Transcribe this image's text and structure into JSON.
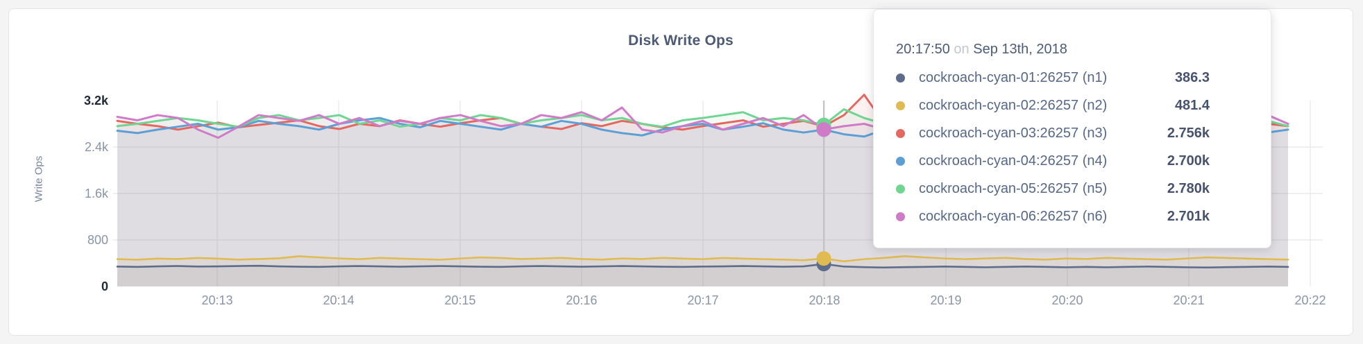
{
  "tooltip": {
    "time": "20:17:50",
    "conjunction": "on",
    "date": "Sep 13th, 2018",
    "rows": [
      {
        "label": "cockroach-cyan-01:26257 (n1)",
        "value": "386.3",
        "color": "#5a6882"
      },
      {
        "label": "cockroach-cyan-02:26257 (n2)",
        "value": "481.4",
        "color": "#e7bf4f"
      },
      {
        "label": "cockroach-cyan-03:26257 (n3)",
        "value": "2.756k",
        "color": "#e7685e"
      },
      {
        "label": "cockroach-cyan-04:26257 (n4)",
        "value": "2.700k",
        "color": "#5e9fd4"
      },
      {
        "label": "cockroach-cyan-05:26257 (n5)",
        "value": "2.780k",
        "color": "#cf7ec6"
      },
      {
        "label": "cockroach-cyan-06:26257 (n6)",
        "value": "2.701k",
        "color": "#cf7ec6"
      }
    ]
  },
  "chart_data": {
    "type": "line",
    "title": "Disk Write Ops",
    "ylabel": "Write Ops",
    "ylim": [
      0,
      3200
    ],
    "grid": true,
    "legend_position": "tooltip-overlay",
    "y_ticks": [
      {
        "value": 0,
        "label": "0",
        "emphasis": true
      },
      {
        "value": 800,
        "label": "800",
        "emphasis": false
      },
      {
        "value": 1600,
        "label": "1.6k",
        "emphasis": false
      },
      {
        "value": 2400,
        "label": "2.4k",
        "emphasis": false
      },
      {
        "value": 3200,
        "label": "3.2k",
        "emphasis": true
      }
    ],
    "x_ticks": [
      "20:13",
      "20:14",
      "20:15",
      "20:16",
      "20:17",
      "20:18",
      "20:19",
      "20:20",
      "20:21",
      "20:22"
    ],
    "hover": {
      "index": 35,
      "time": "20:17:50",
      "line_color": "#c2c3c6"
    },
    "series": [
      {
        "name": "cockroach-cyan-01:26257 (n1)",
        "color": "#5d6c8a",
        "hover_value": 386.3,
        "values": [
          342,
          336,
          346,
          352,
          342,
          346,
          352,
          356,
          346,
          340,
          336,
          346,
          352,
          346,
          340,
          346,
          352,
          346,
          340,
          336,
          346,
          352,
          346,
          340,
          346,
          352,
          346,
          340,
          336,
          342,
          346,
          352,
          346,
          340,
          346,
          386.3,
          342,
          332,
          326,
          332,
          336,
          342,
          336,
          330,
          336,
          342,
          336,
          330,
          336,
          330,
          336,
          342,
          336,
          330,
          326,
          332,
          336,
          342,
          336
        ]
      },
      {
        "name": "cockroach-cyan-02:26257 (n2)",
        "color": "#e0bb51",
        "hover_value": 481.4,
        "values": [
          470,
          460,
          480,
          472,
          490,
          478,
          462,
          472,
          484,
          520,
          500,
          482,
          470,
          492,
          480,
          470,
          460,
          482,
          500,
          490,
          472,
          482,
          492,
          472,
          462,
          482,
          472,
          492,
          480,
          470,
          490,
          480,
          470,
          462,
          452,
          481.4,
          432,
          470,
          492,
          522,
          500,
          482,
          470,
          482,
          492,
          472,
          462,
          482,
          472,
          492,
          480,
          470,
          462,
          482,
          500,
          490,
          480,
          470,
          462
        ]
      },
      {
        "name": "cockroach-cyan-03:26257 (n3)",
        "color": "#e4685f",
        "hover_value": 2756,
        "values": [
          2850,
          2800,
          2760,
          2700,
          2760,
          2820,
          2740,
          2780,
          2820,
          2860,
          2760,
          2710,
          2800,
          2760,
          2860,
          2800,
          2750,
          2810,
          2860,
          2900,
          2800,
          2750,
          2710,
          2810,
          2760,
          2850,
          2800,
          2740,
          2700,
          2760,
          2810,
          2860,
          2750,
          2800,
          2850,
          2756,
          2950,
          3300,
          2800,
          2750,
          2800,
          2900,
          2850,
          2950,
          2800,
          2750,
          2850,
          2800,
          2740,
          2800,
          2860,
          2750,
          2800,
          2900,
          2850,
          2790,
          2740,
          2800,
          2760
        ]
      },
      {
        "name": "cockroach-cyan-04:26257 (n4)",
        "color": "#5b9fd6",
        "hover_value": 2700,
        "values": [
          2680,
          2640,
          2700,
          2750,
          2800,
          2700,
          2740,
          2850,
          2800,
          2760,
          2700,
          2800,
          2860,
          2900,
          2800,
          2740,
          2850,
          2800,
          2750,
          2700,
          2800,
          2750,
          2850,
          2800,
          2700,
          2640,
          2600,
          2700,
          2760,
          2800,
          2700,
          2750,
          2810,
          2700,
          2650,
          2700,
          2620,
          2580,
          2700,
          2800,
          2850,
          2700,
          2750,
          2800,
          2760,
          2700,
          2800,
          2860,
          2750,
          2700,
          2760,
          2800,
          2700,
          2750,
          2800,
          2760,
          2700,
          2650,
          2700
        ]
      },
      {
        "name": "cockroach-cyan-05:26257 (n5)",
        "color": "#6fd591",
        "hover_value": 2780,
        "values": [
          2760,
          2800,
          2850,
          2900,
          2860,
          2800,
          2750,
          2900,
          2950,
          2860,
          2900,
          2950,
          2800,
          2860,
          2750,
          2800,
          2900,
          2860,
          2950,
          2900,
          2800,
          2860,
          2900,
          2950,
          2860,
          2900,
          2800,
          2750,
          2860,
          2900,
          2950,
          3000,
          2860,
          2900,
          2860,
          2780,
          3050,
          2900,
          2800,
          2860,
          2900,
          2750,
          2850,
          2800,
          2900,
          2860,
          2750,
          2900,
          2950,
          2800,
          2860,
          2900,
          2750,
          2800,
          2860,
          2900,
          2950,
          2850,
          2760
        ]
      },
      {
        "name": "cockroach-cyan-06:26257 (n6)",
        "color": "#cf7bc7",
        "hover_value": 2701,
        "values": [
          2920,
          2860,
          2950,
          2900,
          2700,
          2560,
          2750,
          2950,
          2900,
          2850,
          2950,
          2800,
          2900,
          2760,
          2850,
          2800,
          2900,
          2950,
          2850,
          2760,
          2800,
          2950,
          2900,
          3000,
          2860,
          3080,
          2700,
          2650,
          2760,
          2850,
          2700,
          2800,
          2900,
          2760,
          2950,
          2701,
          2760,
          2800,
          2700,
          2850,
          2760,
          2900,
          2800,
          2760,
          2850,
          2700,
          2950,
          2800,
          2760,
          2900,
          2850,
          2700,
          2950,
          2800,
          2620,
          2760,
          2900,
          2950,
          2800
        ]
      }
    ]
  }
}
